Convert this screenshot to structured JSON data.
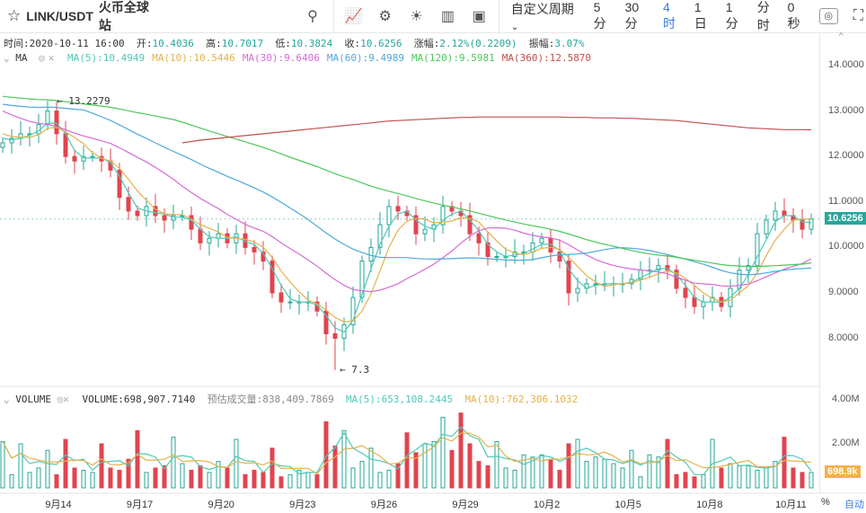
{
  "toolbar": {
    "star_icon": "star-icon",
    "symbol": "LINK/USDT",
    "exchange": "火币全球站",
    "custom_period": "自定义周期",
    "periods": [
      "5分",
      "30分",
      "4时",
      "1日",
      "1分",
      "分时"
    ],
    "active_period": "4时",
    "timer": "0秒"
  },
  "info": {
    "time_label": "时间:",
    "time": "2020-10-11 16:00",
    "open_label": "开:",
    "open": "10.4036",
    "high_label": "高:",
    "high": "10.7017",
    "low_label": "低:",
    "low": "10.3824",
    "close_label": "收:",
    "close": "10.6256",
    "change_label": "涨幅:",
    "change": "2.12%(0.2209)",
    "amp_label": "振幅:",
    "amp": "3.07%"
  },
  "ma": {
    "label": "MA",
    "items": [
      {
        "text": "MA(5):10.4949",
        "color": "#4fc9b5"
      },
      {
        "text": "MA(10):10.5446",
        "color": "#e5b24a"
      },
      {
        "text": "MA(30):9.6406",
        "color": "#d66bd6"
      },
      {
        "text": "MA(60):9.4989",
        "color": "#4fa9d9"
      },
      {
        "text": "MA(120):9.5981",
        "color": "#4ec75a"
      },
      {
        "text": "MA(360):12.5870",
        "color": "#c0504d"
      }
    ]
  },
  "volume": {
    "label": "VOLUME",
    "value": "VOLUME:698,907.7140",
    "est": "预估成交量:838,409.7869",
    "ma5": "MA(5):653,108.2445",
    "ma10": "MA(10):762,306.1032"
  },
  "axis": {
    "price_labels": [
      "14.0000",
      "13.0000",
      "12.0000",
      "11.0000",
      "10.0000",
      "9.0000",
      "8.0000"
    ],
    "current_price": "10.6256",
    "vol_labels": [
      "4.00M",
      "2.00M"
    ],
    "current_vol": "698.9k",
    "dates": [
      "9月14",
      "9月17",
      "9月20",
      "9月23",
      "9月26",
      "9月29",
      "10月2",
      "10月5",
      "10月8",
      "10月11"
    ],
    "bottom_right": [
      "%",
      "自动"
    ]
  },
  "annotations": {
    "max": "← 13.2279",
    "min": "← 7.3"
  },
  "colors": {
    "up": "#26a69a",
    "down": "#e0444f",
    "current_price_bg": "#26a69a",
    "current_vol_bg": "#f5b04a"
  },
  "chart_data": {
    "type": "candlestick",
    "price_range": [
      7,
      14.5
    ],
    "volume_range_M": [
      0,
      4.5
    ],
    "closes": [
      12.3,
      12.4,
      12.5,
      12.5,
      12.7,
      13.0,
      12.5,
      12.0,
      11.9,
      12.0,
      12.0,
      11.9,
      11.7,
      11.1,
      10.8,
      10.7,
      10.9,
      10.7,
      10.6,
      10.7,
      10.7,
      10.4,
      10.1,
      10.2,
      10.3,
      10.1,
      10.3,
      10.0,
      9.9,
      9.7,
      9.0,
      8.8,
      8.8,
      8.8,
      8.8,
      8.6,
      8.1,
      8.0,
      8.3,
      8.9,
      9.7,
      10.0,
      10.5,
      10.9,
      10.8,
      10.7,
      10.3,
      10.4,
      10.5,
      10.9,
      10.8,
      10.7,
      10.3,
      10.1,
      9.8,
      9.8,
      9.8,
      9.9,
      9.9,
      10.1,
      10.2,
      9.9,
      9.7,
      9.0,
      9.1,
      9.2,
      9.2,
      9.2,
      9.2,
      9.2,
      9.3,
      9.5,
      9.5,
      9.6,
      9.5,
      9.1,
      8.9,
      8.7,
      8.8,
      8.9,
      8.7,
      9.1,
      9.5,
      9.6,
      10.3,
      10.6,
      10.8,
      10.7,
      10.6,
      10.4,
      10.6256
    ],
    "volumes_M": [
      2.1,
      0.6,
      2.0,
      0.7,
      0.9,
      1.7,
      0.6,
      2.2,
      0.9,
      0.8,
      0.7,
      2.0,
      0.9,
      0.8,
      1.3,
      2.6,
      0.7,
      0.9,
      1.0,
      2.3,
      1.1,
      0.8,
      1.0,
      0.7,
      1.2,
      0.9,
      2.2,
      0.6,
      0.8,
      0.7,
      1.8,
      0.5,
      0.6,
      0.8,
      0.7,
      0.6,
      3.0,
      1.9,
      2.6,
      0.9,
      1.2,
      1.8,
      0.7,
      0.8,
      1.1,
      2.5,
      1.6,
      2.0,
      2.1,
      3.2,
      1.7,
      3.4,
      2.0,
      1.2,
      1.0,
      2.1,
      0.9,
      0.8,
      1.5,
      1.4,
      1.5,
      1.3,
      0.8,
      2.0,
      2.2,
      1.2,
      1.4,
      1.3,
      1.1,
      0.9,
      1.7,
      0.5,
      1.5,
      1.4,
      2.2,
      0.6,
      0.7,
      0.5,
      0.6,
      2.2,
      0.9,
      1.1,
      1.0,
      1.0,
      0.8,
      0.9,
      1.2,
      2.3,
      0.9,
      0.7,
      0.7
    ],
    "ma360": [
      null,
      null,
      null,
      null,
      null,
      null,
      null,
      null,
      null,
      null,
      null,
      null,
      null,
      null,
      null,
      null,
      null,
      null,
      null,
      null,
      12.3,
      12.33,
      12.36,
      12.38,
      12.4,
      12.42,
      12.44,
      12.46,
      12.48,
      12.5,
      12.52,
      12.54,
      12.56,
      12.58,
      12.6,
      12.62,
      12.64,
      12.66,
      12.68,
      12.7,
      12.72,
      12.74,
      12.76,
      12.78,
      12.79,
      12.8,
      12.81,
      12.82,
      12.83,
      12.84,
      12.85,
      12.86,
      12.86,
      12.87,
      12.87,
      12.87,
      12.87,
      12.87,
      12.87,
      12.87,
      12.87,
      12.87,
      12.87,
      12.86,
      12.86,
      12.86,
      12.85,
      12.85,
      12.85,
      12.84,
      12.84,
      12.83,
      12.82,
      12.81,
      12.8,
      12.79,
      12.77,
      12.75,
      12.73,
      12.71,
      12.69,
      12.67,
      12.65,
      12.63,
      12.62,
      12.61,
      12.6,
      12.59,
      12.59,
      12.59,
      12.587
    ]
  }
}
